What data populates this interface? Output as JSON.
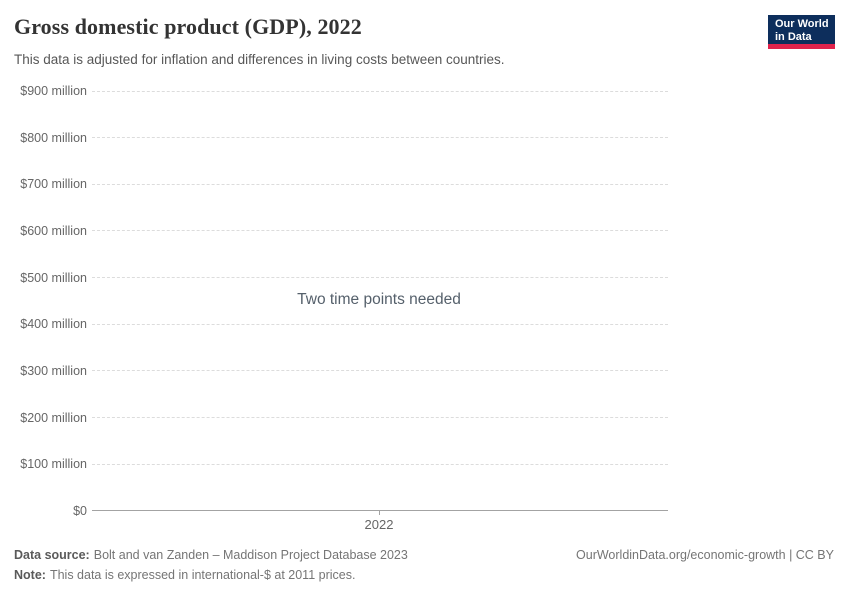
{
  "header": {
    "title": "Gross domestic product (GDP), 2022",
    "subtitle": "This data is adjusted for inflation and differences in living costs between countries.",
    "logo_line1": "Our World",
    "logo_line2": "in Data"
  },
  "chart_data": {
    "type": "line",
    "title": "Gross domestic product (GDP), 2022",
    "subtitle": "This data is adjusted for inflation and differences in living costs between countries.",
    "status_message": "Two time points needed",
    "series": [],
    "x_ticks": [
      "2022"
    ],
    "y_ticks": [
      "$900 million",
      "$800 million",
      "$700 million",
      "$600 million",
      "$500 million",
      "$400 million",
      "$300 million",
      "$200 million",
      "$100 million",
      "$0"
    ],
    "ylim": [
      0,
      900000000
    ],
    "xlabel": "",
    "ylabel": "",
    "grid": "horizontal-dashed",
    "legend": "none"
  },
  "footer": {
    "source_label": "Data source:",
    "source_text": "Bolt and van Zanden – Maddison Project Database 2023",
    "note_label": "Note:",
    "note_text": "This data is expressed in international-$ at 2011 prices.",
    "link": "OurWorldinData.org/economic-growth | CC BY"
  },
  "colors": {
    "logo_bg": "#0d2e5c",
    "logo_accent": "#e0234c",
    "gridline": "#dcdcdc",
    "axis": "#a3a3a3",
    "title_text": "#333333",
    "muted_text": "#757575"
  }
}
